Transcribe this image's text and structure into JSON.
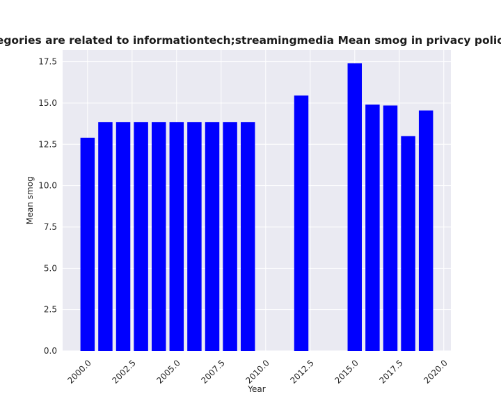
{
  "chart_data": {
    "type": "bar",
    "title": "Seen categories are related to informationtech;streamingmedia Mean smog in privacy policies by Year",
    "xlabel": "Year",
    "ylabel": "Mean smog",
    "x": [
      2000,
      2001,
      2002,
      2003,
      2004,
      2005,
      2006,
      2007,
      2008,
      2009,
      2012,
      2015,
      2016,
      2017,
      2018,
      2019
    ],
    "values": [
      12.9,
      13.85,
      13.85,
      13.85,
      13.85,
      13.85,
      13.85,
      13.85,
      13.85,
      13.85,
      15.45,
      17.4,
      14.9,
      14.85,
      13.0,
      14.55
    ],
    "xlim": [
      1998.6,
      2020.4
    ],
    "ylim": [
      0,
      18.2
    ],
    "xticks": [
      "2000.0",
      "2002.5",
      "2005.0",
      "2007.5",
      "2010.0",
      "2012.5",
      "2015.0",
      "2017.5",
      "2020.0"
    ],
    "yticks": [
      "0.0",
      "2.5",
      "5.0",
      "7.5",
      "10.0",
      "12.5",
      "15.0",
      "17.5"
    ],
    "bar_color": "#0000ff",
    "background_color": "#eaeaf2",
    "grid": true,
    "legend": "none"
  }
}
